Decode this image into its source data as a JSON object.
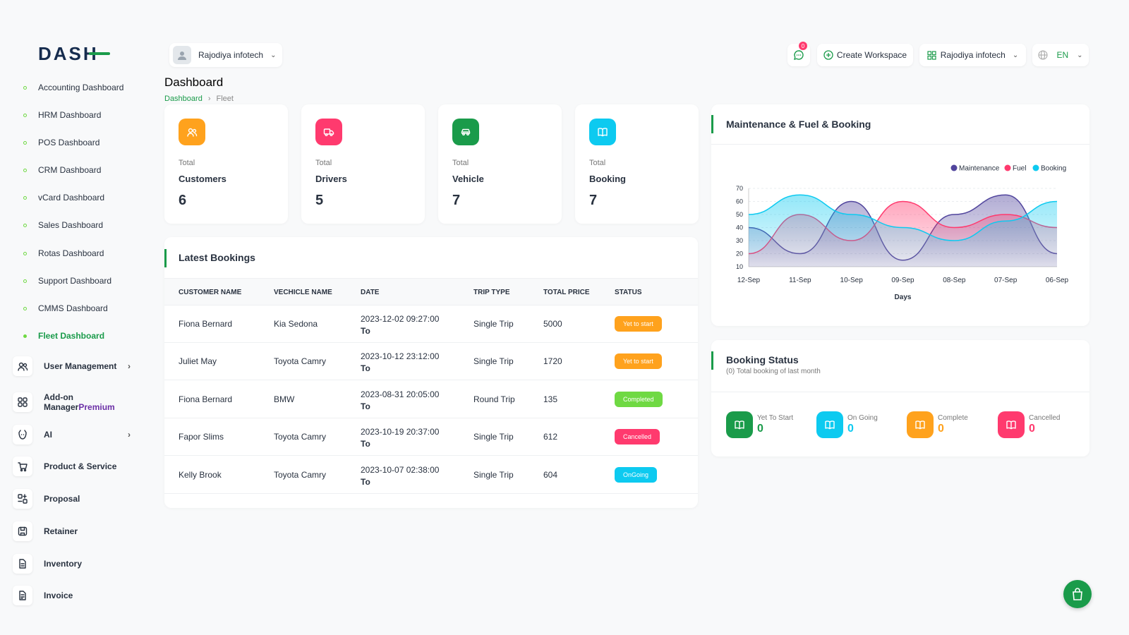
{
  "logo_text": "DASH",
  "sidebar": {
    "dashboards": [
      {
        "label": "Accounting Dashboard",
        "active": false
      },
      {
        "label": "HRM Dashboard",
        "active": false
      },
      {
        "label": "POS Dashboard",
        "active": false
      },
      {
        "label": "CRM Dashboard",
        "active": false
      },
      {
        "label": "vCard Dashboard",
        "active": false
      },
      {
        "label": "Sales Dashboard",
        "active": false
      },
      {
        "label": "Rotas Dashboard",
        "active": false
      },
      {
        "label": "Support Dashboard",
        "active": false
      },
      {
        "label": "CMMS Dashboard",
        "active": false
      },
      {
        "label": "Fleet Dashboard",
        "active": true
      }
    ],
    "menu": [
      {
        "label": "User Management",
        "icon": "users-icon",
        "chevron": true
      },
      {
        "label": "Add-on Manager",
        "badge": "Premium",
        "icon": "grid-icon"
      },
      {
        "label": "AI",
        "icon": "ai-icon",
        "chevron": true
      },
      {
        "label": "Product & Service",
        "icon": "cart-icon"
      },
      {
        "label": "Proposal",
        "icon": "proposal-icon"
      },
      {
        "label": "Retainer",
        "icon": "retainer-icon"
      },
      {
        "label": "Inventory",
        "icon": "file-icon"
      },
      {
        "label": "Invoice",
        "icon": "invoice-icon"
      }
    ]
  },
  "header": {
    "workspace": "Rajodiya infotech",
    "notification_count": "0",
    "create_workspace": "Create Workspace",
    "company": "Rajodiya infotech",
    "language": "EN"
  },
  "page": {
    "title": "Dashboard",
    "breadcrumb": [
      "Dashboard",
      "Fleet"
    ]
  },
  "stats": [
    {
      "small": "Total",
      "label": "Customers",
      "value": "6",
      "color": "#ffa21d",
      "icon": "users-icon"
    },
    {
      "small": "Total",
      "label": "Drivers",
      "value": "5",
      "color": "#ff3a6e",
      "icon": "truck-icon"
    },
    {
      "small": "Total",
      "label": "Vehicle",
      "value": "7",
      "color": "#1a9b4a",
      "icon": "car-icon"
    },
    {
      "small": "Total",
      "label": "Booking",
      "value": "7",
      "color": "#0dcaf0",
      "icon": "book-icon"
    }
  ],
  "bookings": {
    "title": "Latest Bookings",
    "columns": [
      "CUSTOMER NAME",
      "VECHICLE NAME",
      "DATE",
      "TRIP TYPE",
      "TOTAL PRICE",
      "STATUS"
    ],
    "rows": [
      {
        "customer": "Fiona Bernard",
        "vehicle": "Kia Sedona",
        "date": "2023-12-02 09:27:00",
        "to": "To",
        "trip": "Single Trip",
        "price": "5000",
        "status": "Yet to start",
        "status_color": "#ffa21d"
      },
      {
        "customer": "Juliet May",
        "vehicle": "Toyota Camry",
        "date": "2023-10-12 23:12:00",
        "to": "To",
        "trip": "Single Trip",
        "price": "1720",
        "status": "Yet to start",
        "status_color": "#ffa21d"
      },
      {
        "customer": "Fiona Bernard",
        "vehicle": "BMW",
        "date": "2023-08-31 20:05:00",
        "to": "To",
        "trip": "Round Trip",
        "price": "135",
        "status": "Completed",
        "status_color": "#6fd943"
      },
      {
        "customer": "Fapor Slims",
        "vehicle": "Toyota Camry",
        "date": "2023-10-19 20:37:00",
        "to": "To",
        "trip": "Single Trip",
        "price": "612",
        "status": "Cancelled",
        "status_color": "#ff3a6e"
      },
      {
        "customer": "Kelly Brook",
        "vehicle": "Toyota Camry",
        "date": "2023-10-07 02:38:00",
        "to": "To",
        "trip": "Single Trip",
        "price": "604",
        "status": "OnGoing",
        "status_color": "#0dcaf0"
      }
    ]
  },
  "chart_data": {
    "type": "area",
    "title": "Maintenance & Fuel & Booking",
    "xlabel": "Days",
    "ylabel": "",
    "x": [
      "12-Sep",
      "11-Sep",
      "10-Sep",
      "09-Sep",
      "08-Sep",
      "07-Sep",
      "06-Sep"
    ],
    "ylim": [
      10,
      70
    ],
    "yticks": [
      10,
      20,
      30,
      40,
      50,
      60,
      70
    ],
    "series": [
      {
        "name": "Maintenance",
        "color": "#51459d",
        "values": [
          40,
          20,
          60,
          15,
          50,
          65,
          20
        ]
      },
      {
        "name": "Fuel",
        "color": "#ff3a6e",
        "values": [
          20,
          50,
          30,
          60,
          40,
          50,
          40
        ]
      },
      {
        "name": "Booking",
        "color": "#0dcaf0",
        "values": [
          50,
          65,
          50,
          40,
          30,
          45,
          60
        ]
      }
    ],
    "legend": "top-right",
    "grid": true
  },
  "booking_status": {
    "title": "Booking Status",
    "subtitle": "(0) Total booking of last month",
    "items": [
      {
        "label": "Yet To Start",
        "value": "0",
        "color": "#1a9b4a"
      },
      {
        "label": "On Going",
        "value": "0",
        "color": "#0dcaf0"
      },
      {
        "label": "Complete",
        "value": "0",
        "color": "#ffa21d"
      },
      {
        "label": "Cancelled",
        "value": "0",
        "color": "#ff3a6e"
      }
    ]
  }
}
